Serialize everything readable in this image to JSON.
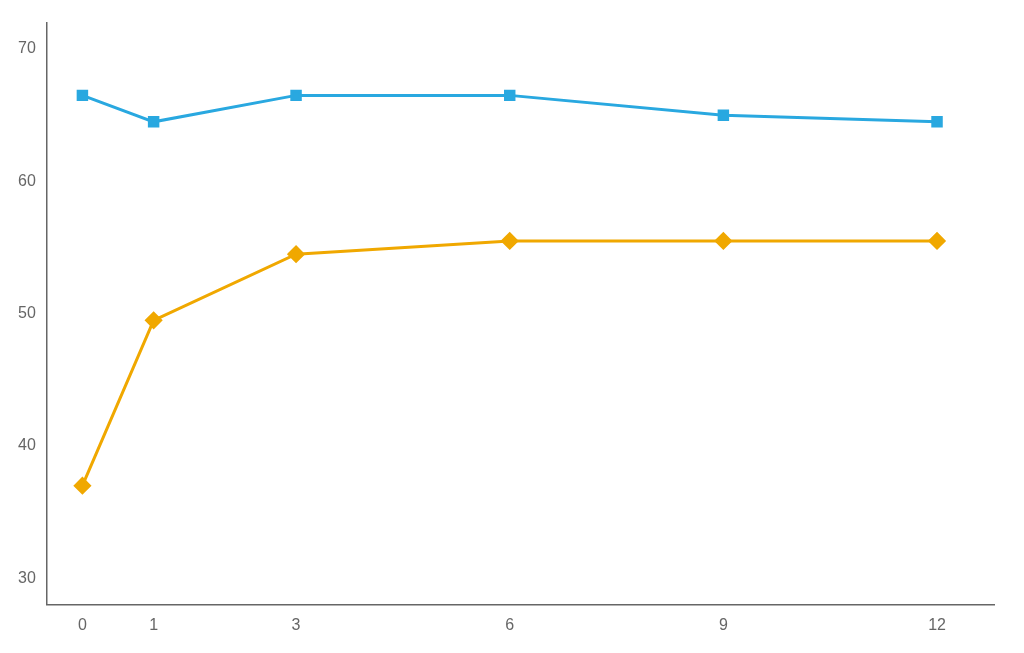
{
  "chart_data": {
    "type": "line",
    "x": [
      0,
      1,
      3,
      6,
      9,
      12
    ],
    "series": [
      {
        "color": "#29a8e0",
        "marker": "square",
        "values": [
          66.5,
          64.5,
          66.5,
          66.5,
          65.0,
          64.5
        ]
      },
      {
        "color": "#f0a800",
        "marker": "diamond",
        "values": [
          37.0,
          49.5,
          54.5,
          55.5,
          55.5,
          55.5
        ]
      }
    ],
    "xlim": [
      -0.5,
      12.8
    ],
    "xticks": [
      0,
      1,
      3,
      6,
      9,
      12
    ],
    "ylim": [
      28,
      72
    ],
    "yticks": [
      30,
      40,
      50,
      60,
      70
    ],
    "grid": false
  }
}
